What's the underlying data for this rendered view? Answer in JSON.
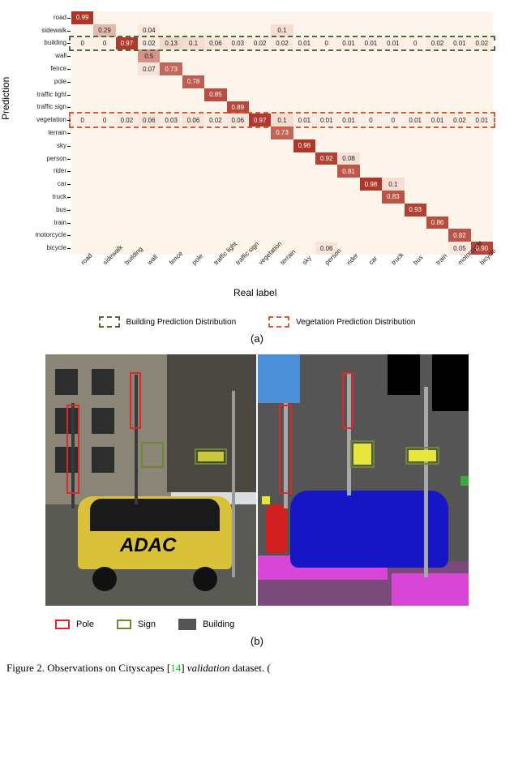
{
  "classes": [
    "road",
    "sidewalk",
    "building",
    "wall",
    "fence",
    "pole",
    "traffic light",
    "traffic sign",
    "vegetation",
    "terrain",
    "sky",
    "person",
    "rider",
    "car",
    "truck",
    "bus",
    "train",
    "motorcycle",
    "bicycle"
  ],
  "n": 19,
  "colorLow": "#fdf0e6",
  "colorHigh": "#ad3326",
  "matrixBg": "#fdf4ec",
  "ytitle": "Prediction",
  "xtitle": "Real label",
  "sublabel_a": "(a)",
  "sublabel_b": "(b)",
  "cells": [
    [
      0,
      0,
      0.99
    ],
    [
      1,
      1,
      0.29
    ],
    [
      1,
      3,
      0.04
    ],
    [
      1,
      9,
      0.1
    ],
    [
      2,
      0,
      0
    ],
    [
      2,
      1,
      0
    ],
    [
      2,
      2,
      0.97
    ],
    [
      2,
      3,
      0.02
    ],
    [
      2,
      4,
      0.13
    ],
    [
      2,
      5,
      0.1
    ],
    [
      2,
      6,
      0.06
    ],
    [
      2,
      7,
      0.03
    ],
    [
      2,
      8,
      0.02
    ],
    [
      2,
      9,
      0.02
    ],
    [
      2,
      10,
      0.01
    ],
    [
      2,
      11,
      0
    ],
    [
      2,
      12,
      0.01
    ],
    [
      2,
      13,
      0.01
    ],
    [
      2,
      14,
      0.01
    ],
    [
      2,
      15,
      0
    ],
    [
      2,
      16,
      0.02
    ],
    [
      2,
      17,
      0.01
    ],
    [
      2,
      18,
      0.02
    ],
    [
      3,
      3,
      0.5
    ],
    [
      4,
      3,
      0.07
    ],
    [
      4,
      4,
      0.73
    ],
    [
      5,
      5,
      0.78
    ],
    [
      6,
      6,
      0.85
    ],
    [
      7,
      7,
      0.89
    ],
    [
      8,
      0,
      0
    ],
    [
      8,
      1,
      0
    ],
    [
      8,
      2,
      0.02
    ],
    [
      8,
      3,
      0.06
    ],
    [
      8,
      4,
      0.03
    ],
    [
      8,
      5,
      0.06
    ],
    [
      8,
      6,
      0.02
    ],
    [
      8,
      7,
      0.06
    ],
    [
      8,
      8,
      0.97
    ],
    [
      8,
      9,
      0.1
    ],
    [
      8,
      10,
      0.01
    ],
    [
      8,
      11,
      0.01
    ],
    [
      8,
      12,
      0.01
    ],
    [
      8,
      13,
      0
    ],
    [
      8,
      14,
      0
    ],
    [
      8,
      15,
      0.01
    ],
    [
      8,
      16,
      0.01
    ],
    [
      8,
      17,
      0.02
    ],
    [
      8,
      18,
      0.01
    ],
    [
      9,
      9,
      0.73
    ],
    [
      10,
      10,
      0.98
    ],
    [
      11,
      11,
      0.92
    ],
    [
      11,
      12,
      0.08
    ],
    [
      12,
      12,
      0.81
    ],
    [
      13,
      13,
      0.98
    ],
    [
      13,
      14,
      0.1
    ],
    [
      14,
      14,
      0.83
    ],
    [
      15,
      15,
      0.93
    ],
    [
      16,
      16,
      0.86
    ],
    [
      17,
      17,
      0.82
    ],
    [
      18,
      11,
      0.06
    ],
    [
      18,
      17,
      0.05
    ],
    [
      18,
      18,
      0.9
    ]
  ],
  "boxes": [
    {
      "row": 2,
      "color": "#4b6b3f",
      "label": "Building Prediction Distribution"
    },
    {
      "row": 8,
      "color": "#e05a2b",
      "label": "Vegetation Prediction Distribution"
    }
  ],
  "panelB": {
    "photo": {
      "skyColor": "#d9dde0",
      "buildingColor": "#8a8577",
      "buildingDarkColor": "#4a4640",
      "groundColor": "#5a5a55",
      "carBody": "#d9c23a",
      "carDark": "#1a1a1a",
      "carText": "ADAC",
      "poleColor": "#3a3a3a",
      "signColor": "#c9c93a"
    },
    "seg": {
      "building": "#555555",
      "sky": "#4a8fd8",
      "road": "#7a4a7a",
      "sidewalk": "#d846d8",
      "person": "#d21f1f",
      "car": "#1616c7",
      "pole": "#a8a8a8",
      "sign": "#e6e63a",
      "black": "#000000",
      "veg": "#3aa83a"
    },
    "annot": {
      "poleColor": "#e02727",
      "signColor": "#6b8a2f",
      "poleLabel": "Pole",
      "signLabel": "Sign",
      "buildingLabel": "Building"
    }
  },
  "caption": {
    "pre": "Figure 2. Observations on Cityscapes [",
    "ref": "14",
    "post1": "] ",
    "ital": "validation",
    "post2": " dataset. ("
  }
}
